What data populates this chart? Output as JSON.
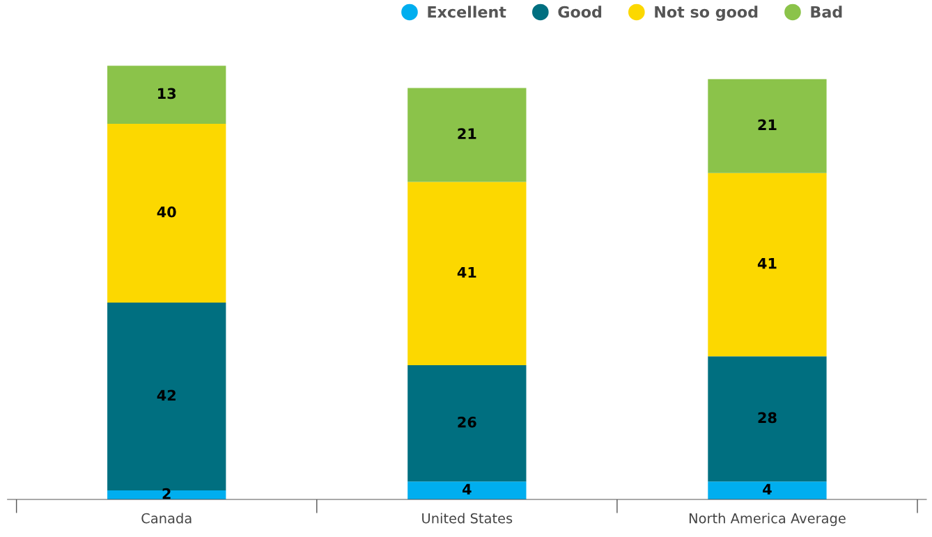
{
  "chart_data": {
    "type": "bar",
    "stacked": true,
    "data_labels": true,
    "legend": "top",
    "grid": false,
    "marker": "circle",
    "categories": [
      "Canada",
      "United States",
      "North America Average"
    ],
    "series": [
      {
        "name": "Excellent",
        "color": "#00aeef",
        "values": [
          2,
          4,
          4
        ]
      },
      {
        "name": "Good",
        "color": "#006f80",
        "values": [
          42,
          26,
          28
        ]
      },
      {
        "name": "Not so good",
        "color": "#fcd800",
        "values": [
          40,
          41,
          41
        ]
      },
      {
        "name": "Bad",
        "color": "#8bc34a",
        "values": [
          13,
          21,
          21
        ]
      }
    ]
  }
}
